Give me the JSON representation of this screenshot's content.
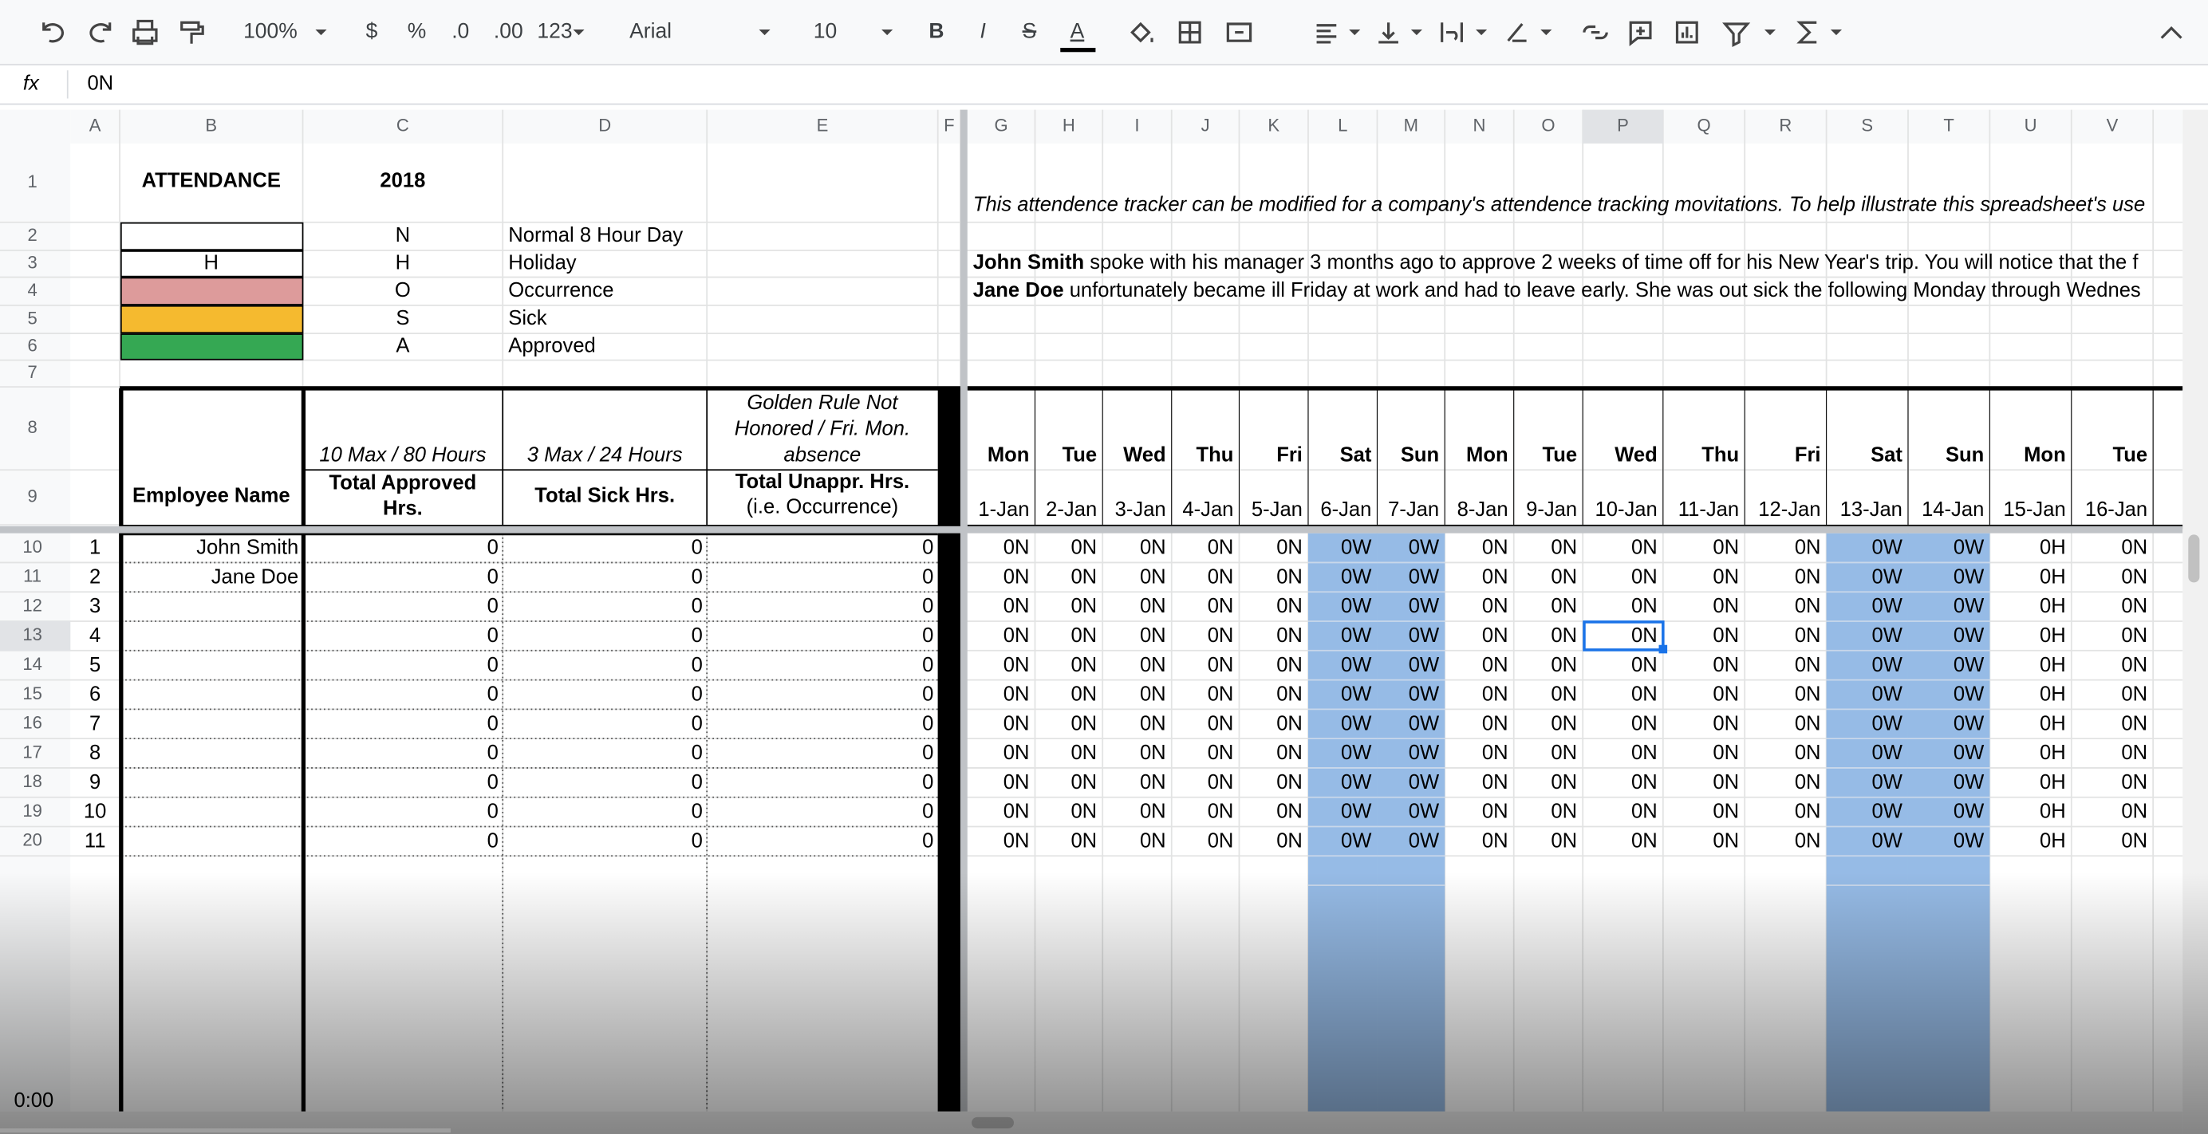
{
  "toolbar": {
    "zoom": "100%",
    "currency": "$",
    "percent": "%",
    "decrease_decimals": ".0",
    "increase_decimals": ".00",
    "more_formats": "123",
    "font": "Arial",
    "font_size": "10",
    "bold": "B",
    "italic": "I",
    "strikethrough": "S",
    "text_color": "A"
  },
  "formula_bar": {
    "label": "fx",
    "value": "0N"
  },
  "video_time": "0:00",
  "columns": [
    "A",
    "B",
    "C",
    "D",
    "E",
    "F",
    "G",
    "H",
    "I",
    "J",
    "K",
    "L",
    "M",
    "N",
    "O",
    "P",
    "Q",
    "R",
    "S",
    "T",
    "U",
    "V"
  ],
  "row_headers": [
    1,
    2,
    3,
    4,
    5,
    6,
    7,
    8,
    9,
    10,
    11,
    12,
    13,
    14,
    15,
    16,
    17,
    18,
    19,
    20
  ],
  "title": {
    "label": "ATTENDANCE",
    "year": "2018"
  },
  "legend": [
    {
      "code": "N",
      "meaning": "Normal 8 Hour Day",
      "color": "#ffffff"
    },
    {
      "sample": "H",
      "code": "H",
      "meaning": "Holiday",
      "color": "#ffffff"
    },
    {
      "code": "O",
      "meaning": "Occurrence",
      "color": "#dd9b9b"
    },
    {
      "code": "S",
      "meaning": "Sick",
      "color": "#f5ba2f"
    },
    {
      "code": "A",
      "meaning": "Approved",
      "color": "#35a853"
    }
  ],
  "notes": {
    "intro": "This attendence tracker can be modified for a company's attendence tracking movitations. To help illustrate this spreadsheet's use",
    "examples": [
      {
        "bold": "John Smith",
        "text": " spoke with his manager 3 months ago to approve 2 weeks of time off for his New Year's trip. You will notice that the f"
      },
      {
        "bold": "Jane Doe",
        "text": " unfortunately became ill Friday at work and had to leave early. She was out sick the following Monday through Wednes"
      }
    ]
  },
  "headers": {
    "approved_note": "10 Max / 80 Hours",
    "sick_note": "3 Max / 24 Hours",
    "unapproved_note": [
      "Golden Rule Not",
      "Honored / Fri. Mon.",
      "absence"
    ],
    "employee_name": "Employee Name",
    "approved": [
      "Total Approved",
      "Hrs."
    ],
    "sick": "Total Sick Hrs.",
    "unapproved": "Total Unappr. Hrs.",
    "unapproved_sub": "(i.e. Occurrence)"
  },
  "days": [
    {
      "dow": "Mon",
      "date": "1-Jan"
    },
    {
      "dow": "Tue",
      "date": "2-Jan"
    },
    {
      "dow": "Wed",
      "date": "3-Jan"
    },
    {
      "dow": "Thu",
      "date": "4-Jan"
    },
    {
      "dow": "Fri",
      "date": "5-Jan"
    },
    {
      "dow": "Sat",
      "date": "6-Jan",
      "fill": "#96bbe6"
    },
    {
      "dow": "Sun",
      "date": "7-Jan",
      "fill": "#96bbe6"
    },
    {
      "dow": "Mon",
      "date": "8-Jan"
    },
    {
      "dow": "Tue",
      "date": "9-Jan"
    },
    {
      "dow": "Wed",
      "date": "10-Jan"
    },
    {
      "dow": "Thu",
      "date": "11-Jan"
    },
    {
      "dow": "Fri",
      "date": "12-Jan"
    },
    {
      "dow": "Sat",
      "date": "13-Jan",
      "fill": "#96bbe6"
    },
    {
      "dow": "Sun",
      "date": "14-Jan",
      "fill": "#96bbe6"
    },
    {
      "dow": "Mon",
      "date": "15-Jan",
      "color": "#4a86e8"
    },
    {
      "dow": "Tue",
      "date": "16-Jan"
    }
  ],
  "employees": [
    {
      "number": 1,
      "name": "John Smith",
      "approved": 0,
      "sick": 0,
      "unapproved": 0,
      "days": [
        "0N",
        "0N",
        "0N",
        "0N",
        "0N",
        "0W",
        "0W",
        "0N",
        "0N",
        "0N",
        "0N",
        "0N",
        "0W",
        "0W",
        "0H",
        "0N"
      ]
    },
    {
      "number": 2,
      "name": "Jane Doe",
      "approved": 0,
      "sick": 0,
      "unapproved": 0,
      "days": [
        "0N",
        "0N",
        "0N",
        "0N",
        "0N",
        "0W",
        "0W",
        "0N",
        "0N",
        "0N",
        "0N",
        "0N",
        "0W",
        "0W",
        "0H",
        "0N"
      ]
    },
    {
      "number": 3,
      "approved": 0,
      "sick": 0,
      "unapproved": 0,
      "days": [
        "0N",
        "0N",
        "0N",
        "0N",
        "0N",
        "0W",
        "0W",
        "0N",
        "0N",
        "0N",
        "0N",
        "0N",
        "0W",
        "0W",
        "0H",
        "0N"
      ]
    },
    {
      "number": 4,
      "approved": 0,
      "sick": 0,
      "unapproved": 0,
      "days": [
        "0N",
        "0N",
        "0N",
        "0N",
        "0N",
        "0W",
        "0W",
        "0N",
        "0N",
        "0N",
        "0N",
        "0N",
        "0W",
        "0W",
        "0H",
        "0N"
      ]
    },
    {
      "number": 5,
      "approved": 0,
      "sick": 0,
      "unapproved": 0,
      "days": [
        "0N",
        "0N",
        "0N",
        "0N",
        "0N",
        "0W",
        "0W",
        "0N",
        "0N",
        "0N",
        "0N",
        "0N",
        "0W",
        "0W",
        "0H",
        "0N"
      ]
    },
    {
      "number": 6,
      "approved": 0,
      "sick": 0,
      "unapproved": 0,
      "days": [
        "0N",
        "0N",
        "0N",
        "0N",
        "0N",
        "0W",
        "0W",
        "0N",
        "0N",
        "0N",
        "0N",
        "0N",
        "0W",
        "0W",
        "0H",
        "0N"
      ]
    },
    {
      "number": 7,
      "approved": 0,
      "sick": 0,
      "unapproved": 0,
      "days": [
        "0N",
        "0N",
        "0N",
        "0N",
        "0N",
        "0W",
        "0W",
        "0N",
        "0N",
        "0N",
        "0N",
        "0N",
        "0W",
        "0W",
        "0H",
        "0N"
      ]
    },
    {
      "number": 8,
      "approved": 0,
      "sick": 0,
      "unapproved": 0,
      "days": [
        "0N",
        "0N",
        "0N",
        "0N",
        "0N",
        "0W",
        "0W",
        "0N",
        "0N",
        "0N",
        "0N",
        "0N",
        "0W",
        "0W",
        "0H",
        "0N"
      ]
    },
    {
      "number": 9,
      "approved": 0,
      "sick": 0,
      "unapproved": 0,
      "days": [
        "0N",
        "0N",
        "0N",
        "0N",
        "0N",
        "0W",
        "0W",
        "0N",
        "0N",
        "0N",
        "0N",
        "0N",
        "0W",
        "0W",
        "0H",
        "0N"
      ]
    },
    {
      "number": 10,
      "approved": 0,
      "sick": 0,
      "unapproved": 0,
      "days": [
        "0N",
        "0N",
        "0N",
        "0N",
        "0N",
        "0W",
        "0W",
        "0N",
        "0N",
        "0N",
        "0N",
        "0N",
        "0W",
        "0W",
        "0H",
        "0N"
      ]
    },
    {
      "number": 11,
      "approved": 0,
      "sick": 0,
      "unapproved": 0,
      "days": [
        "0N",
        "0N",
        "0N",
        "0N",
        "0N",
        "0W",
        "0W",
        "0N",
        "0N",
        "0N",
        "0N",
        "0N",
        "0W",
        "0W",
        "0H",
        "0N"
      ]
    }
  ]
}
